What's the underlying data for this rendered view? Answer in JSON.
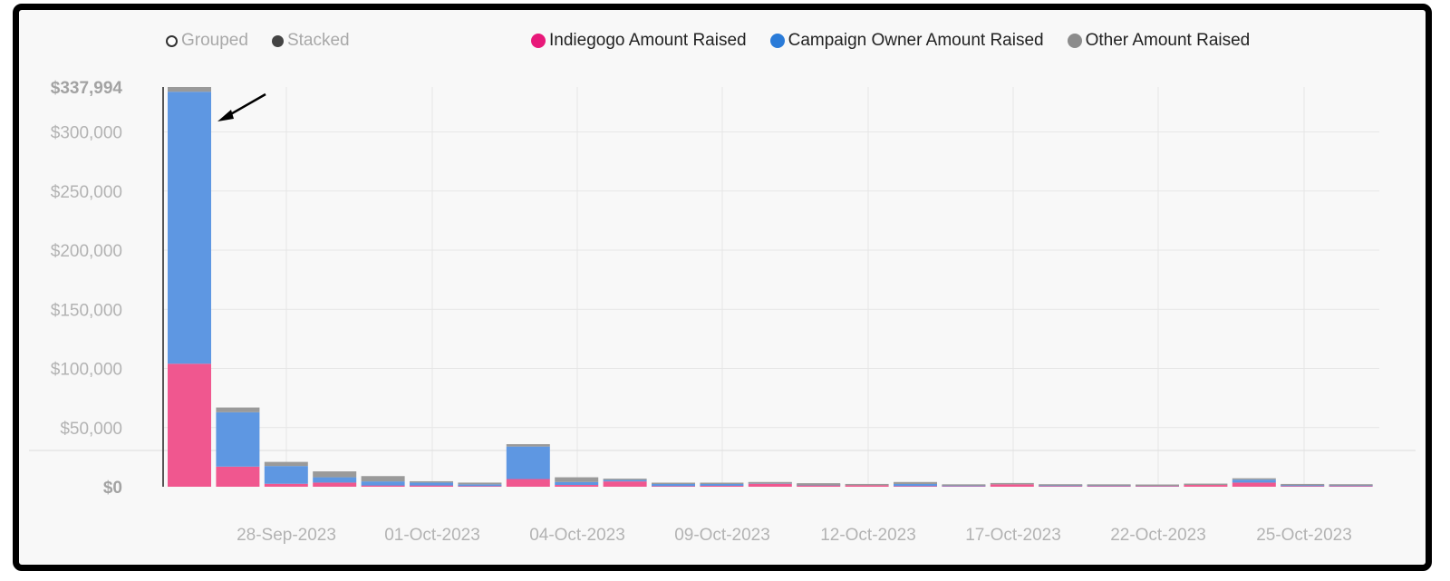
{
  "toggles": {
    "grouped_label": "Grouped",
    "stacked_label": "Stacked",
    "selected": "Stacked"
  },
  "colors": {
    "indiegogo": "#f0578f",
    "owner": "#5e97e2",
    "other": "#9a9a9a",
    "indiegogo_dot": "#e8197a",
    "owner_dot": "#2a7bd8",
    "other_dot": "#8c8c8c"
  },
  "chart_data": {
    "type": "bar",
    "stacked": true,
    "max_label": "$337,994",
    "y_ticks": [
      "$0",
      "$50,000",
      "$100,000",
      "$150,000",
      "$200,000",
      "$250,000",
      "$300,000"
    ],
    "ylim": [
      0,
      337994
    ],
    "x_tick_labels": [
      "28-Sep-2023",
      "01-Oct-2023",
      "04-Oct-2023",
      "09-Oct-2023",
      "12-Oct-2023",
      "17-Oct-2023",
      "22-Oct-2023",
      "25-Oct-2023"
    ],
    "series": [
      {
        "name": "Indiegogo Amount Raised",
        "values": [
          104000,
          17000,
          2500,
          3500,
          1000,
          1000,
          500,
          6500,
          1500,
          4500,
          500,
          800,
          2500,
          1000,
          1200,
          500,
          400,
          2000,
          500,
          500,
          500,
          1500,
          3500,
          500,
          500
        ]
      },
      {
        "name": "Campaign Owner Amount Raised",
        "values": [
          230000,
          46000,
          15000,
          4500,
          3500,
          2500,
          1500,
          27500,
          2500,
          1200,
          1800,
          1500,
          200,
          200,
          0,
          1800,
          500,
          0,
          500,
          400,
          200,
          0,
          2500,
          700,
          500
        ]
      },
      {
        "name": "Other Amount Raised",
        "values": [
          3994,
          4000,
          3500,
          5000,
          4500,
          500,
          1500,
          2000,
          4000,
          1000,
          500,
          400,
          1300,
          1800,
          500,
          1700,
          800,
          1000,
          1000,
          600,
          1200,
          500,
          1000,
          300,
          1000
        ]
      }
    ]
  }
}
